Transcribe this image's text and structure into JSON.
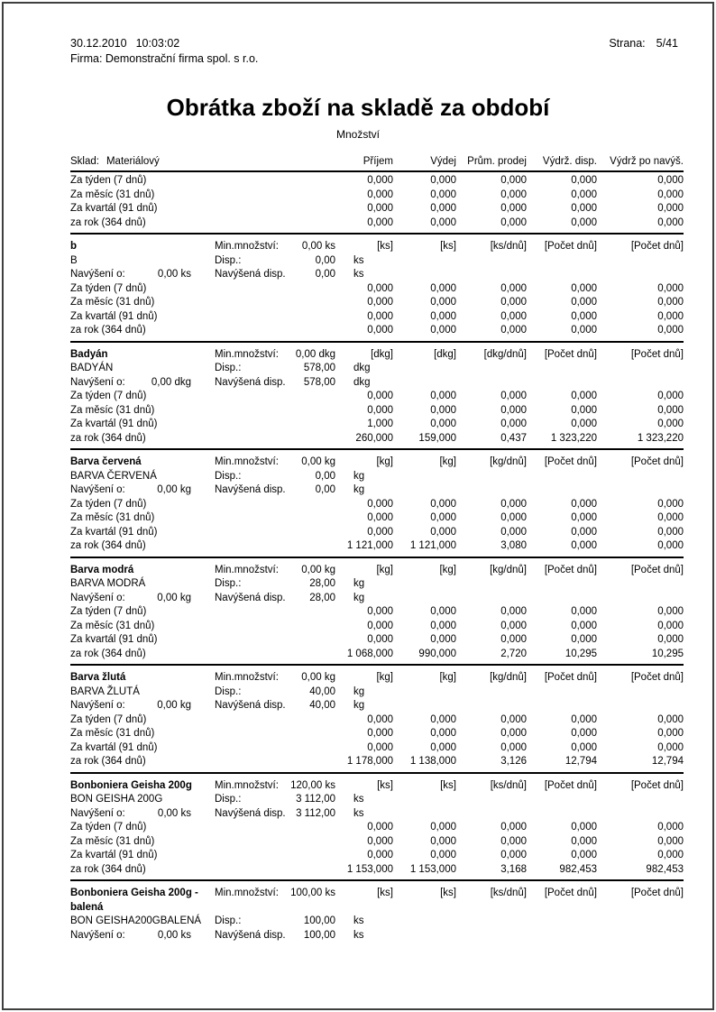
{
  "header": {
    "date": "30.12.2010",
    "time": "10:03:02",
    "company": "Firma: Demonstrační firma spol. s r.o.",
    "page_label": "Strana:",
    "page_value": "5/41",
    "title": "Obrátka zboží na skladě za období",
    "subtitle": "Množství"
  },
  "table": {
    "warehouse_label": "Sklad:",
    "warehouse_value": "Materiálový",
    "columns": [
      "Příjem",
      "Výdej",
      "Prům. prodej",
      "Výdrž. disp.",
      "Výdrž po navýš."
    ],
    "summary_rows": [
      {
        "label": "Za týden (7 dnů)",
        "values": [
          "0,000",
          "0,000",
          "0,000",
          "0,000",
          "0,000"
        ]
      },
      {
        "label": "Za měsíc (31 dnů)",
        "values": [
          "0,000",
          "0,000",
          "0,000",
          "0,000",
          "0,000"
        ]
      },
      {
        "label": "Za kvartál (91 dnů)",
        "values": [
          "0,000",
          "0,000",
          "0,000",
          "0,000",
          "0,000"
        ]
      },
      {
        "label": "za rok (364 dnů)",
        "values": [
          "0,000",
          "0,000",
          "0,000",
          "0,000",
          "0,000"
        ]
      }
    ],
    "labels": {
      "min": "Min.množství:",
      "disp": "Disp.:",
      "increase": "Navýšení o:",
      "increased_disp": "Navýšená disp."
    },
    "sections": [
      {
        "name": "b",
        "code": "B",
        "min_value": "0,00 ks",
        "disp_value": "0,00",
        "increase_value": "0,00 ks",
        "increased_disp_value": "0,00",
        "unit": "ks",
        "unit_headers": [
          "[ks]",
          "[ks]",
          "[ks/dnů]",
          "[Počet dnů]",
          "[Počet dnů]"
        ],
        "rows": [
          {
            "label": "Za týden (7 dnů)",
            "values": [
              "0,000",
              "0,000",
              "0,000",
              "0,000",
              "0,000"
            ]
          },
          {
            "label": "Za měsíc (31 dnů)",
            "values": [
              "0,000",
              "0,000",
              "0,000",
              "0,000",
              "0,000"
            ]
          },
          {
            "label": "Za kvartál (91 dnů)",
            "values": [
              "0,000",
              "0,000",
              "0,000",
              "0,000",
              "0,000"
            ]
          },
          {
            "label": "za rok (364 dnů)",
            "values": [
              "0,000",
              "0,000",
              "0,000",
              "0,000",
              "0,000"
            ]
          }
        ]
      },
      {
        "name": "Badyán",
        "code": "BADYÁN",
        "min_value": "0,00 dkg",
        "disp_value": "578,00",
        "increase_value": "0,00 dkg",
        "increased_disp_value": "578,00",
        "unit": "dkg",
        "unit_headers": [
          "[dkg]",
          "[dkg]",
          "[dkg/dnů]",
          "[Počet dnů]",
          "[Počet dnů]"
        ],
        "rows": [
          {
            "label": "Za týden (7 dnů)",
            "values": [
              "0,000",
              "0,000",
              "0,000",
              "0,000",
              "0,000"
            ]
          },
          {
            "label": "Za měsíc (31 dnů)",
            "values": [
              "0,000",
              "0,000",
              "0,000",
              "0,000",
              "0,000"
            ]
          },
          {
            "label": "Za kvartál (91 dnů)",
            "values": [
              "1,000",
              "0,000",
              "0,000",
              "0,000",
              "0,000"
            ]
          },
          {
            "label": "za rok (364 dnů)",
            "values": [
              "260,000",
              "159,000",
              "0,437",
              "1 323,220",
              "1 323,220"
            ]
          }
        ]
      },
      {
        "name": "Barva červená",
        "code": "BARVA ČERVENÁ",
        "min_value": "0,00 kg",
        "disp_value": "0,00",
        "increase_value": "0,00 kg",
        "increased_disp_value": "0,00",
        "unit": "kg",
        "unit_headers": [
          "[kg]",
          "[kg]",
          "[kg/dnů]",
          "[Počet dnů]",
          "[Počet dnů]"
        ],
        "rows": [
          {
            "label": "Za týden (7 dnů)",
            "values": [
              "0,000",
              "0,000",
              "0,000",
              "0,000",
              "0,000"
            ]
          },
          {
            "label": "Za měsíc (31 dnů)",
            "values": [
              "0,000",
              "0,000",
              "0,000",
              "0,000",
              "0,000"
            ]
          },
          {
            "label": "Za kvartál (91 dnů)",
            "values": [
              "0,000",
              "0,000",
              "0,000",
              "0,000",
              "0,000"
            ]
          },
          {
            "label": "za rok (364 dnů)",
            "values": [
              "1 121,000",
              "1 121,000",
              "3,080",
              "0,000",
              "0,000"
            ]
          }
        ]
      },
      {
        "name": "Barva modrá",
        "code": "BARVA MODRÁ",
        "min_value": "0,00 kg",
        "disp_value": "28,00",
        "increase_value": "0,00 kg",
        "increased_disp_value": "28,00",
        "unit": "kg",
        "unit_headers": [
          "[kg]",
          "[kg]",
          "[kg/dnů]",
          "[Počet dnů]",
          "[Počet dnů]"
        ],
        "rows": [
          {
            "label": "Za týden (7 dnů)",
            "values": [
              "0,000",
              "0,000",
              "0,000",
              "0,000",
              "0,000"
            ]
          },
          {
            "label": "Za měsíc (31 dnů)",
            "values": [
              "0,000",
              "0,000",
              "0,000",
              "0,000",
              "0,000"
            ]
          },
          {
            "label": "Za kvartál (91 dnů)",
            "values": [
              "0,000",
              "0,000",
              "0,000",
              "0,000",
              "0,000"
            ]
          },
          {
            "label": "za rok (364 dnů)",
            "values": [
              "1 068,000",
              "990,000",
              "2,720",
              "10,295",
              "10,295"
            ]
          }
        ]
      },
      {
        "name": "Barva žlutá",
        "code": "BARVA ŽLUTÁ",
        "min_value": "0,00 kg",
        "disp_value": "40,00",
        "increase_value": "0,00 kg",
        "increased_disp_value": "40,00",
        "unit": "kg",
        "unit_headers": [
          "[kg]",
          "[kg]",
          "[kg/dnů]",
          "[Počet dnů]",
          "[Počet dnů]"
        ],
        "rows": [
          {
            "label": "Za týden (7 dnů)",
            "values": [
              "0,000",
              "0,000",
              "0,000",
              "0,000",
              "0,000"
            ]
          },
          {
            "label": "Za měsíc (31 dnů)",
            "values": [
              "0,000",
              "0,000",
              "0,000",
              "0,000",
              "0,000"
            ]
          },
          {
            "label": "Za kvartál (91 dnů)",
            "values": [
              "0,000",
              "0,000",
              "0,000",
              "0,000",
              "0,000"
            ]
          },
          {
            "label": "za rok (364 dnů)",
            "values": [
              "1 178,000",
              "1 138,000",
              "3,126",
              "12,794",
              "12,794"
            ]
          }
        ]
      },
      {
        "name": "Bonboniera Geisha 200g",
        "code": "BON GEISHA 200G",
        "min_value": "120,00 ks",
        "disp_value": "3 112,00",
        "increase_value": "0,00 ks",
        "increased_disp_value": "3 112,00",
        "unit": "ks",
        "unit_headers": [
          "[ks]",
          "[ks]",
          "[ks/dnů]",
          "[Počet dnů]",
          "[Počet dnů]"
        ],
        "rows": [
          {
            "label": "Za týden (7 dnů)",
            "values": [
              "0,000",
              "0,000",
              "0,000",
              "0,000",
              "0,000"
            ]
          },
          {
            "label": "Za měsíc (31 dnů)",
            "values": [
              "0,000",
              "0,000",
              "0,000",
              "0,000",
              "0,000"
            ]
          },
          {
            "label": "Za kvartál (91 dnů)",
            "values": [
              "0,000",
              "0,000",
              "0,000",
              "0,000",
              "0,000"
            ]
          },
          {
            "label": "za rok (364 dnů)",
            "values": [
              "1 153,000",
              "1 153,000",
              "3,168",
              "982,453",
              "982,453"
            ]
          }
        ]
      },
      {
        "name": "Bonboniera Geisha 200g - balená",
        "code": "BON GEISHA200GBALENÁ",
        "min_value": "100,00 ks",
        "disp_value": "100,00",
        "increase_value": "0,00 ks",
        "increased_disp_value": "100,00",
        "unit": "ks",
        "unit_headers": [
          "[ks]",
          "[ks]",
          "[ks/dnů]",
          "[Počet dnů]",
          "[Počet dnů]"
        ],
        "partial": true,
        "rows": []
      }
    ]
  }
}
